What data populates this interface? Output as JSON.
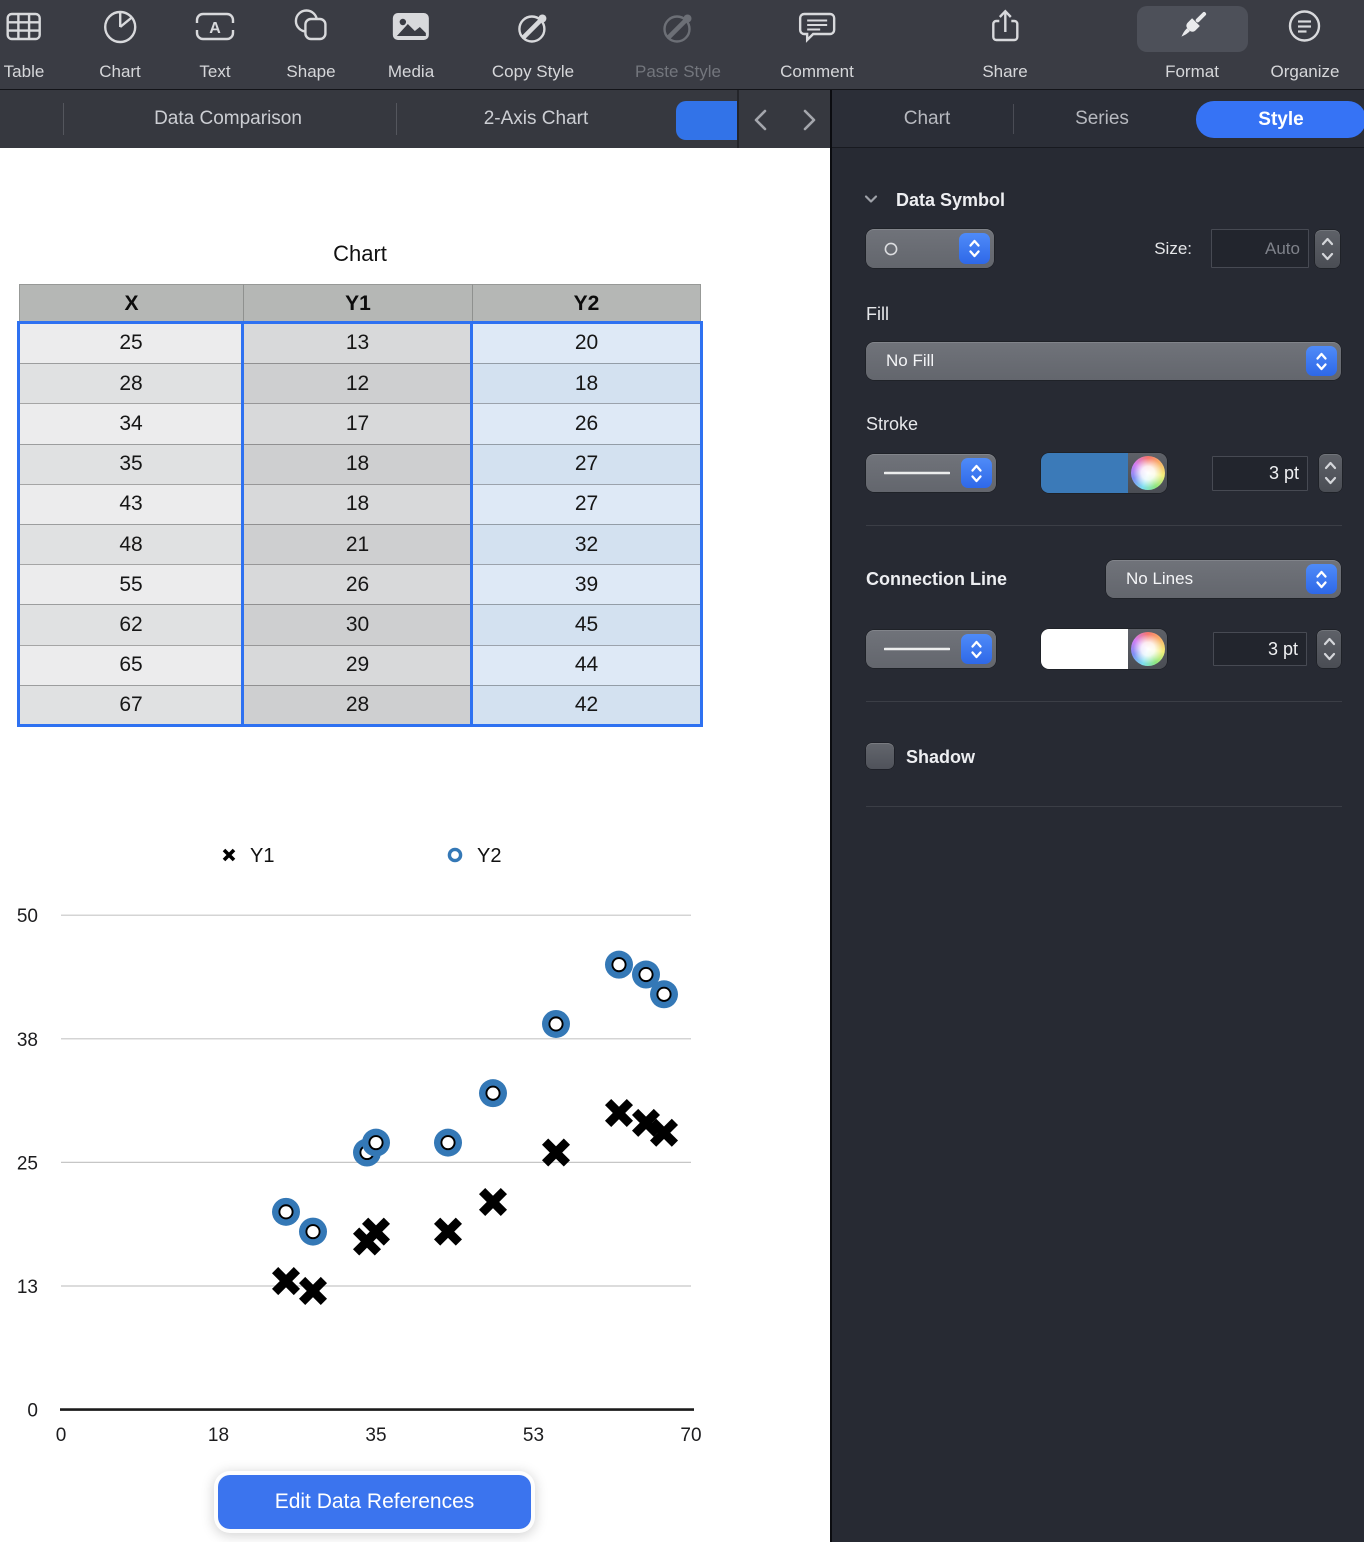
{
  "toolbar": {
    "items": [
      {
        "label": "Table"
      },
      {
        "label": "Chart"
      },
      {
        "label": "Text"
      },
      {
        "label": "Shape"
      },
      {
        "label": "Media"
      },
      {
        "label": "Copy Style"
      },
      {
        "label": "Paste Style"
      },
      {
        "label": "Comment"
      },
      {
        "label": "Share"
      },
      {
        "label": "Format"
      },
      {
        "label": "Organize"
      }
    ]
  },
  "tabbar": {
    "tabs": [
      {
        "label": "Data Comparison"
      },
      {
        "label": "2-Axis Chart"
      }
    ]
  },
  "panel": {
    "tabs": {
      "chart": "Chart",
      "series": "Series",
      "style": "Style"
    },
    "data_symbol": {
      "title": "Data Symbol",
      "size_label": "Size:",
      "size_value": "Auto"
    },
    "fill": {
      "label": "Fill",
      "value": "No Fill"
    },
    "stroke": {
      "label": "Stroke",
      "width": "3 pt",
      "color": "#3b7ab8"
    },
    "connection_line": {
      "label": "Connection Line",
      "value": "No Lines",
      "width": "3 pt",
      "color": "#ffffff"
    },
    "shadow": {
      "label": "Shadow"
    }
  },
  "document": {
    "chart_title": "Chart",
    "edit_button": "Edit Data References"
  },
  "table": {
    "headers": [
      "X",
      "Y1",
      "Y2"
    ],
    "rows": [
      [
        "25",
        "13",
        "20"
      ],
      [
        "28",
        "12",
        "18"
      ],
      [
        "34",
        "17",
        "26"
      ],
      [
        "35",
        "18",
        "27"
      ],
      [
        "43",
        "18",
        "27"
      ],
      [
        "48",
        "21",
        "32"
      ],
      [
        "55",
        "26",
        "39"
      ],
      [
        "62",
        "30",
        "45"
      ],
      [
        "65",
        "29",
        "44"
      ],
      [
        "67",
        "28",
        "42"
      ]
    ]
  },
  "chart_data": {
    "type": "scatter",
    "title": "Chart",
    "xlabel": "",
    "ylabel": "",
    "xlim": [
      0,
      70
    ],
    "ylim": [
      0,
      50
    ],
    "x_ticks": {
      "values": [
        0,
        17.5,
        35,
        52.5,
        70
      ],
      "labels": [
        "0",
        "18",
        "35",
        "53",
        "70"
      ]
    },
    "y_ticks": {
      "values": [
        0,
        12.5,
        25,
        37.5,
        50
      ],
      "labels": [
        "0",
        "13",
        "25",
        "38",
        "50"
      ]
    },
    "grid": true,
    "legend_position": "top",
    "series": [
      {
        "name": "Y1",
        "marker": "x",
        "color": "#000000",
        "points": [
          [
            25,
            13
          ],
          [
            28,
            12
          ],
          [
            34,
            17
          ],
          [
            35,
            18
          ],
          [
            43,
            18
          ],
          [
            48,
            21
          ],
          [
            55,
            26
          ],
          [
            62,
            30
          ],
          [
            65,
            29
          ],
          [
            67,
            28
          ]
        ]
      },
      {
        "name": "Y2",
        "marker": "circle",
        "color": "#3478b6",
        "points": [
          [
            25,
            20
          ],
          [
            28,
            18
          ],
          [
            34,
            26
          ],
          [
            35,
            27
          ],
          [
            43,
            27
          ],
          [
            48,
            32
          ],
          [
            55,
            39
          ],
          [
            62,
            45
          ],
          [
            65,
            44
          ],
          [
            67,
            42
          ]
        ]
      }
    ]
  }
}
